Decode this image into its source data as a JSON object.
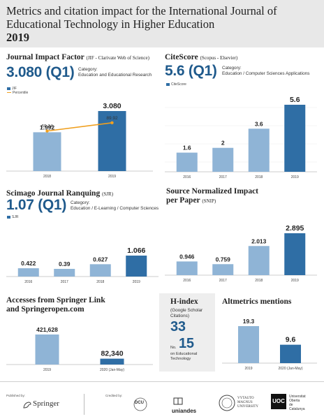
{
  "header": {
    "title": "Metrics and citation impact for the International Journal of Educational Technology in Higher Education",
    "year": "2019"
  },
  "jif": {
    "title": "Journal Impact Factor",
    "source": "(JIF - Clarivate Web of Science)",
    "value": "3.080 (Q1)",
    "category_label": "Category:",
    "category": "Education and Educational Research",
    "legend_bar": "JIF",
    "legend_line": "Percentile"
  },
  "citescore": {
    "title": "CiteScore",
    "source": "(Scopus - Elsevier)",
    "value": "5.6 (Q1)",
    "category_label": "Category:",
    "category": "Education / Computer Sciences Applications",
    "legend_bar": "CiteScore"
  },
  "sjr": {
    "title": "Scimago Journal Ranquing",
    "source": "(SJR)",
    "value": "1.07 (Q1)",
    "category_label": "Category:",
    "category": "Education / E-Learning / Computer Sciences",
    "legend_bar": "SJR"
  },
  "snip": {
    "title_line1": "Source Normalized Impact",
    "title_line2": "per Paper",
    "source": "(SNIP)"
  },
  "accesses": {
    "title_line1": "Accesses from Springer Link",
    "title_line2": "and Springeropen.com"
  },
  "hindex": {
    "title": "H-index",
    "sub1": "(Google Scholar",
    "sub2": "Citations)",
    "value": "33",
    "no_label": "No.",
    "rank": "15",
    "rank_note1": "on Educational",
    "rank_note2": "Technology"
  },
  "altmetrics": {
    "title": "Altmetrics mentions"
  },
  "footer": {
    "published_by": "Published by:",
    "springer": "Springer",
    "credited_by": "Credited by:",
    "dcu": "DCU",
    "uniandes": "uniandes",
    "vmu1": "VYTAUTO",
    "vmu2": "MAGNUS",
    "vmu3": "UNIVERSITY",
    "uoc": "UOC",
    "uoc_name1": "Universitat",
    "uoc_name2": "Oberta",
    "uoc_name3": "de Catalunya"
  },
  "colors": {
    "light_bar": "#8fb4d6",
    "dark_bar": "#2f6ea5",
    "line": "#f0a020",
    "accent": "#1f5a8c"
  },
  "chart_data": [
    {
      "id": "jif",
      "type": "bar",
      "categories": [
        "2018",
        "2019"
      ],
      "series": [
        {
          "name": "JIF",
          "values": [
            1.992,
            3.08
          ],
          "labels": [
            "1.992",
            "3.080"
          ]
        },
        {
          "name": "Percentile",
          "type": "line",
          "values": [
            69.34,
            89.92
          ],
          "labels": [
            "69.34",
            "89.92"
          ]
        }
      ]
    },
    {
      "id": "citescore",
      "type": "bar",
      "categories": [
        "2016",
        "2017",
        "2018",
        "2019"
      ],
      "series": [
        {
          "name": "CiteScore",
          "values": [
            1.6,
            2,
            3.6,
            5.6
          ],
          "labels": [
            "1.6",
            "2",
            "3.6",
            "5.6"
          ]
        }
      ]
    },
    {
      "id": "sjr",
      "type": "bar",
      "categories": [
        "2016",
        "2017",
        "2018",
        "2019"
      ],
      "series": [
        {
          "name": "SJR",
          "values": [
            0.422,
            0.39,
            0.627,
            1.066
          ],
          "labels": [
            "0.422",
            "0.39",
            "0.627",
            "1.066"
          ]
        }
      ]
    },
    {
      "id": "snip",
      "type": "bar",
      "categories": [
        "2016",
        "2017",
        "2018",
        "2019"
      ],
      "series": [
        {
          "values": [
            0.946,
            0.759,
            2.013,
            2.895
          ],
          "labels": [
            "0.946",
            "0.759",
            "2.013",
            "2.895"
          ]
        }
      ]
    },
    {
      "id": "accesses",
      "type": "bar",
      "categories": [
        "2019",
        "2020 (Jan-May)"
      ],
      "series": [
        {
          "values": [
            421628,
            82340
          ],
          "labels": [
            "421,628",
            "82,340"
          ]
        }
      ]
    },
    {
      "id": "altmetrics",
      "type": "bar",
      "categories": [
        "2019",
        "2020 (Jan-May)"
      ],
      "series": [
        {
          "values": [
            19.3,
            9.6
          ],
          "labels": [
            "19.3",
            "9.6"
          ]
        }
      ]
    }
  ]
}
